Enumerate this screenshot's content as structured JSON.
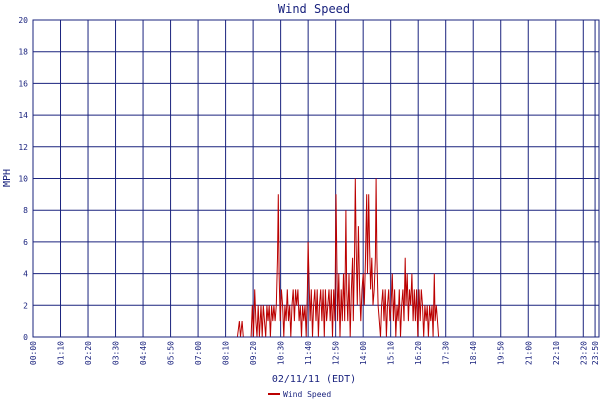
{
  "chart_data": {
    "type": "line",
    "title": "Wind Speed",
    "xlabel": "02/11/11 (EDT)",
    "ylabel": "MPH",
    "ylim": [
      0,
      20
    ],
    "yticks": [
      0,
      2,
      4,
      6,
      8,
      10,
      12,
      14,
      16,
      18,
      20
    ],
    "xticks": [
      "00:00",
      "01:10",
      "02:20",
      "03:30",
      "04:40",
      "05:50",
      "07:00",
      "08:10",
      "09:20",
      "10:30",
      "11:40",
      "12:50",
      "14:00",
      "15:10",
      "16:20",
      "17:30",
      "18:40",
      "19:50",
      "21:00",
      "22:10",
      "23:20",
      "23:50"
    ],
    "grid": true,
    "legend_position": "bottom-left",
    "colors": {
      "frame": "#1a237e",
      "series": "#bb0000",
      "grid": "#1a237e"
    },
    "series": [
      {
        "name": "Wind Speed",
        "points": [
          [
            "00:00",
            0
          ],
          [
            "08:40",
            0
          ],
          [
            "08:45",
            1
          ],
          [
            "08:48",
            0
          ],
          [
            "08:52",
            1
          ],
          [
            "08:55",
            0
          ],
          [
            "09:15",
            0
          ],
          [
            "09:18",
            2
          ],
          [
            "09:21",
            0
          ],
          [
            "09:24",
            3
          ],
          [
            "09:27",
            1
          ],
          [
            "09:30",
            0
          ],
          [
            "09:33",
            2
          ],
          [
            "09:36",
            0
          ],
          [
            "09:40",
            2
          ],
          [
            "09:43",
            0
          ],
          [
            "09:46",
            2
          ],
          [
            "09:49",
            1
          ],
          [
            "09:52",
            0
          ],
          [
            "09:55",
            2
          ],
          [
            "09:58",
            1
          ],
          [
            "10:01",
            2
          ],
          [
            "10:04",
            0
          ],
          [
            "10:07",
            2
          ],
          [
            "10:10",
            1
          ],
          [
            "10:13",
            2
          ],
          [
            "10:16",
            1
          ],
          [
            "10:19",
            2
          ],
          [
            "10:22",
            5
          ],
          [
            "10:24",
            9
          ],
          [
            "10:26",
            4
          ],
          [
            "10:29",
            1
          ],
          [
            "10:32",
            3
          ],
          [
            "10:35",
            2
          ],
          [
            "10:38",
            0
          ],
          [
            "10:41",
            2
          ],
          [
            "10:44",
            1
          ],
          [
            "10:47",
            3
          ],
          [
            "10:50",
            1
          ],
          [
            "10:53",
            2
          ],
          [
            "10:56",
            0
          ],
          [
            "10:59",
            2
          ],
          [
            "11:02",
            3
          ],
          [
            "11:05",
            1
          ],
          [
            "11:08",
            3
          ],
          [
            "11:11",
            2
          ],
          [
            "11:14",
            3
          ],
          [
            "11:17",
            1
          ],
          [
            "11:20",
            2
          ],
          [
            "11:23",
            0
          ],
          [
            "11:26",
            2
          ],
          [
            "11:29",
            1
          ],
          [
            "11:32",
            2
          ],
          [
            "11:35",
            0
          ],
          [
            "11:38",
            3
          ],
          [
            "11:40",
            6
          ],
          [
            "11:42",
            4
          ],
          [
            "11:45",
            1
          ],
          [
            "11:48",
            3
          ],
          [
            "11:51",
            0
          ],
          [
            "11:54",
            2
          ],
          [
            "11:57",
            3
          ],
          [
            "12:00",
            1
          ],
          [
            "12:03",
            3
          ],
          [
            "12:06",
            0
          ],
          [
            "12:09",
            2
          ],
          [
            "12:12",
            3
          ],
          [
            "12:15",
            1
          ],
          [
            "12:18",
            3
          ],
          [
            "12:21",
            0
          ],
          [
            "12:24",
            3
          ],
          [
            "12:27",
            1
          ],
          [
            "12:30",
            2
          ],
          [
            "12:33",
            3
          ],
          [
            "12:36",
            1
          ],
          [
            "12:39",
            3
          ],
          [
            "12:42",
            0
          ],
          [
            "12:45",
            3
          ],
          [
            "12:48",
            1
          ],
          [
            "12:51",
            9
          ],
          [
            "12:53",
            5
          ],
          [
            "12:55",
            1
          ],
          [
            "12:58",
            4
          ],
          [
            "13:01",
            0
          ],
          [
            "13:04",
            3
          ],
          [
            "13:07",
            1
          ],
          [
            "13:10",
            4
          ],
          [
            "13:13",
            1
          ],
          [
            "13:16",
            8
          ],
          [
            "13:18",
            3
          ],
          [
            "13:21",
            1
          ],
          [
            "13:24",
            4
          ],
          [
            "13:27",
            0
          ],
          [
            "13:30",
            3
          ],
          [
            "13:33",
            5
          ],
          [
            "13:35",
            1
          ],
          [
            "13:38",
            5
          ],
          [
            "13:40",
            10
          ],
          [
            "13:42",
            6
          ],
          [
            "13:45",
            2
          ],
          [
            "13:48",
            7
          ],
          [
            "13:51",
            3
          ],
          [
            "13:54",
            1
          ],
          [
            "13:57",
            3
          ],
          [
            "14:00",
            4
          ],
          [
            "14:03",
            2
          ],
          [
            "14:06",
            5
          ],
          [
            "14:09",
            9
          ],
          [
            "14:11",
            4
          ],
          [
            "14:14",
            9
          ],
          [
            "14:16",
            6
          ],
          [
            "14:19",
            3
          ],
          [
            "14:22",
            5
          ],
          [
            "14:25",
            2
          ],
          [
            "14:28",
            3
          ],
          [
            "14:31",
            5
          ],
          [
            "14:33",
            10
          ],
          [
            "14:35",
            5
          ],
          [
            "14:38",
            2
          ],
          [
            "14:41",
            1
          ],
          [
            "14:44",
            0
          ],
          [
            "14:47",
            2
          ],
          [
            "14:50",
            3
          ],
          [
            "14:53",
            1
          ],
          [
            "14:56",
            3
          ],
          [
            "14:59",
            0
          ],
          [
            "15:02",
            2
          ],
          [
            "15:05",
            3
          ],
          [
            "15:08",
            1
          ],
          [
            "15:11",
            2
          ],
          [
            "15:14",
            4
          ],
          [
            "15:17",
            1
          ],
          [
            "15:20",
            3
          ],
          [
            "15:23",
            0
          ],
          [
            "15:26",
            2
          ],
          [
            "15:29",
            1
          ],
          [
            "15:32",
            3
          ],
          [
            "15:35",
            0
          ],
          [
            "15:38",
            2
          ],
          [
            "15:41",
            3
          ],
          [
            "15:44",
            1
          ],
          [
            "15:47",
            5
          ],
          [
            "15:49",
            2
          ],
          [
            "15:52",
            4
          ],
          [
            "15:55",
            1
          ],
          [
            "15:58",
            3
          ],
          [
            "16:01",
            2
          ],
          [
            "16:04",
            4
          ],
          [
            "16:07",
            1
          ],
          [
            "16:10",
            3
          ],
          [
            "16:13",
            1
          ],
          [
            "16:16",
            3
          ],
          [
            "16:19",
            0
          ],
          [
            "16:22",
            3
          ],
          [
            "16:25",
            1
          ],
          [
            "16:28",
            3
          ],
          [
            "16:31",
            2
          ],
          [
            "16:34",
            0
          ],
          [
            "16:37",
            2
          ],
          [
            "16:40",
            1
          ],
          [
            "16:43",
            2
          ],
          [
            "16:46",
            0
          ],
          [
            "16:49",
            2
          ],
          [
            "16:52",
            1
          ],
          [
            "16:55",
            2
          ],
          [
            "16:58",
            0
          ],
          [
            "17:01",
            4
          ],
          [
            "17:03",
            1
          ],
          [
            "17:06",
            2
          ],
          [
            "17:09",
            1
          ],
          [
            "17:12",
            0
          ],
          [
            "17:15",
            0
          ],
          [
            "23:59",
            0
          ]
        ]
      }
    ]
  }
}
